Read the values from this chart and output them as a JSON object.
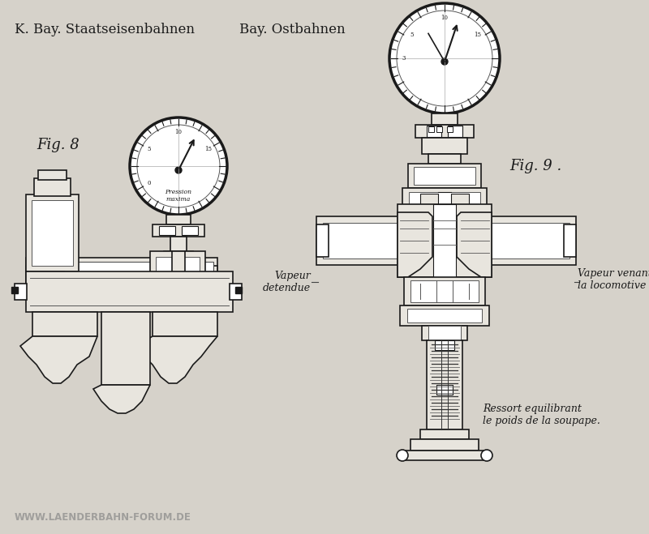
{
  "background_color": "#d6d2ca",
  "diagram_bg": "#e8e5de",
  "title_left": "K. Bay. Staatseisenbahnen",
  "title_right": "Bay. Ostbahnen",
  "fig8_label": "Fig. 8",
  "fig9_label": "Fig. 9 .",
  "label_vapeur_detendue": "Vapeur\ndetendue",
  "label_vapeur_venant": "Vapeur venant de\nla locomotive",
  "label_ressort": "Ressort equilibrant\nle poids de la soupape.",
  "label_pression": "Pression\nmaxima",
  "watermark": "WWW.LAENDERBAHN-FORUM.DE",
  "fig_width": 8.0,
  "fig_height": 6.59,
  "dpi": 100,
  "text_color": "#1a1a1a",
  "line_color": "#1a1a1a",
  "watermark_color": "#888888"
}
